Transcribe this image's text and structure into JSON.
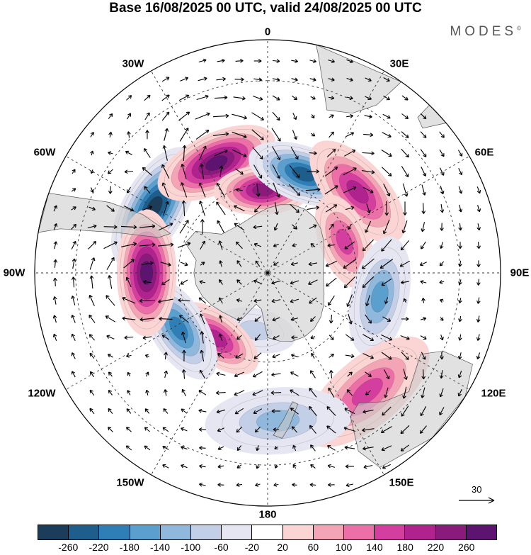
{
  "title": "Base 16/08/2025 00 UTC, valid 24/08/2025 00 UTC",
  "brand": "MODES",
  "brand_mark": "©",
  "longitude_labels": {
    "lon_0": "0",
    "lon_30e": "30E",
    "lon_60e": "60E",
    "lon_90e": "90E",
    "lon_120e": "120E",
    "lon_150e": "150E",
    "lon_180": "180",
    "lon_150w": "150W",
    "lon_120w": "120W",
    "lon_90w": "90W",
    "lon_60w": "60W",
    "lon_30w": "30W"
  },
  "vector_reference": {
    "value": "30"
  },
  "colorbar": {
    "labels": [
      "-260",
      "-220",
      "-180",
      "-140",
      "-100",
      "-60",
      "-20",
      "20",
      "60",
      "100",
      "140",
      "180",
      "220",
      "260"
    ],
    "colors": [
      "#1c3d5a",
      "#1e5e8c",
      "#2f7fb6",
      "#5b9fcf",
      "#8fb8dc",
      "#c3cfe6",
      "#e6e6f2",
      "#ffffff",
      "#fbd4d4",
      "#f4a5b5",
      "#ec6fa8",
      "#d43f9f",
      "#b0228e",
      "#8a1a7c",
      "#5c1470"
    ]
  },
  "chart_data": {
    "type": "heatmap",
    "title": "Base 16/08/2025 00 UTC, valid 24/08/2025 00 UTC",
    "projection": "south-polar-stereographic",
    "field": "anomaly",
    "contour_levels": [
      -260,
      -220,
      -180,
      -140,
      -100,
      -60,
      -20,
      20,
      60,
      100,
      140,
      180,
      220,
      260
    ],
    "features": [
      {
        "name": "negative-anomaly-60w",
        "lon": -60,
        "lat": -47,
        "peak": -260
      },
      {
        "name": "positive-anomaly-30w",
        "lon": -25,
        "lat": -50,
        "peak": 260
      },
      {
        "name": "positive-anomaly-5w",
        "lon": -3,
        "lat": -62,
        "peak": 240
      },
      {
        "name": "negative-anomaly-20e",
        "lon": 20,
        "lat": -55,
        "peak": -220
      },
      {
        "name": "positive-anomaly-45e",
        "lon": 48,
        "lat": -50,
        "peak": 180
      },
      {
        "name": "positive-anomaly-65e",
        "lon": 68,
        "lat": -62,
        "peak": 140
      },
      {
        "name": "negative-anomaly-105e",
        "lon": 102,
        "lat": -52,
        "peak": -160
      },
      {
        "name": "positive-anomaly-145e",
        "lon": 140,
        "lat": -40,
        "peak": 160
      },
      {
        "name": "negative-anomaly-175e",
        "lon": 176,
        "lat": -42,
        "peak": -100
      },
      {
        "name": "negative-anomaly-170w",
        "lon": -168,
        "lat": -70,
        "peak": -80
      },
      {
        "name": "positive-anomaly-145w",
        "lon": -142,
        "lat": -62,
        "peak": 180
      },
      {
        "name": "negative-anomaly-120w",
        "lon": -122,
        "lat": -55,
        "peak": -200
      },
      {
        "name": "positive-anomaly-90w",
        "lon": -90,
        "lat": -50,
        "peak": 260
      }
    ]
  }
}
